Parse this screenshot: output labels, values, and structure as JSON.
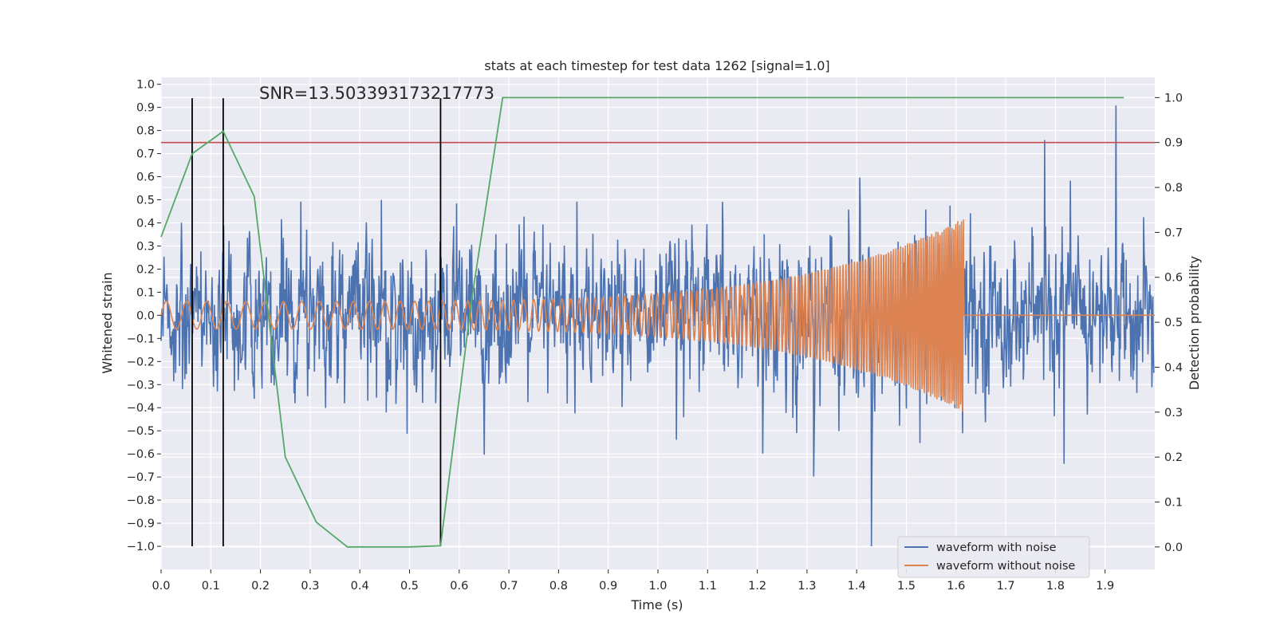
{
  "chart_data": {
    "type": "line",
    "title": "stats at each timestep for test data 1262 [signal=1.0]",
    "annotation": "SNR=13.503393173217773",
    "xlabel": "Time (s)",
    "ylabel_left": "Whitened strain",
    "ylabel_right": "Detection probability",
    "xlim": [
      0.0,
      2.0
    ],
    "ylim_left": [
      -1.1,
      1.03
    ],
    "ylim_right": [
      -0.05,
      1.045
    ],
    "x_ticks": [
      "0.0",
      "0.1",
      "0.2",
      "0.3",
      "0.4",
      "0.5",
      "0.6",
      "0.7",
      "0.8",
      "0.9",
      "1.0",
      "1.1",
      "1.2",
      "1.3",
      "1.4",
      "1.5",
      "1.6",
      "1.7",
      "1.8",
      "1.9"
    ],
    "y_left_ticks": [
      "1.0",
      "0.9",
      "0.8",
      "0.7",
      "0.6",
      "0.5",
      "0.4",
      "0.3",
      "0.2",
      "0.1",
      "0.0",
      "−0.1",
      "−0.2",
      "−0.3",
      "−0.4",
      "−0.5",
      "−0.6",
      "−0.7",
      "−0.8",
      "−0.9",
      "−1.0"
    ],
    "y_right_ticks": [
      "1.0",
      "0.9",
      "0.8",
      "0.7",
      "0.6",
      "0.5",
      "0.4",
      "0.3",
      "0.2",
      "0.1",
      "0.0"
    ],
    "threshold": 0.9,
    "detection_markers": [
      0.0625,
      0.125,
      0.5625
    ],
    "marker_y_range": [
      -1.0,
      0.94
    ],
    "series": [
      {
        "name": "waveform with noise",
        "color": "#4c72b0",
        "kind": "noisy",
        "duration": 2.0,
        "noise_std": 0.22
      },
      {
        "name": "waveform without noise",
        "color": "#dd8452",
        "kind": "chirp",
        "merger_time": 1.615,
        "amp_start": 0.06,
        "amp_end": 0.42,
        "f_start": 32,
        "f_end": 85
      },
      {
        "name": "detection probability",
        "color": "#55a868",
        "kind": "probability",
        "x": [
          0.0,
          0.0625,
          0.125,
          0.1875,
          0.25,
          0.3125,
          0.375,
          0.4375,
          0.5,
          0.5625,
          0.625,
          0.6875,
          0.75,
          0.8125,
          0.875,
          0.9375,
          1.0,
          1.0625,
          1.125,
          1.1875,
          1.25,
          1.3125,
          1.375,
          1.4375,
          1.5,
          1.5625,
          1.625,
          1.6875,
          1.75,
          1.8125,
          1.875,
          1.9375
        ],
        "y": [
          0.69,
          0.875,
          0.925,
          0.78,
          0.2,
          0.055,
          0.0,
          0.0,
          0.0,
          0.0025,
          0.55,
          0.9999,
          0.9999,
          0.9999,
          0.9999,
          0.9999,
          0.9999,
          0.9999,
          0.9999,
          0.9999,
          0.9999,
          0.9999,
          0.9999,
          0.9999,
          0.9999,
          0.9999,
          0.9999,
          0.9999,
          0.9999,
          0.9999,
          0.9999,
          0.9999
        ]
      },
      {
        "name": "threshold",
        "color": "#c44e52",
        "kind": "hline"
      }
    ],
    "legend": [
      {
        "label": "waveform with noise",
        "color": "#4c72b0"
      },
      {
        "label": "waveform without noise",
        "color": "#dd8452"
      }
    ],
    "legend_position": "bottom-right",
    "background": "#eaeaf2",
    "grid_color": "#ffffff"
  }
}
